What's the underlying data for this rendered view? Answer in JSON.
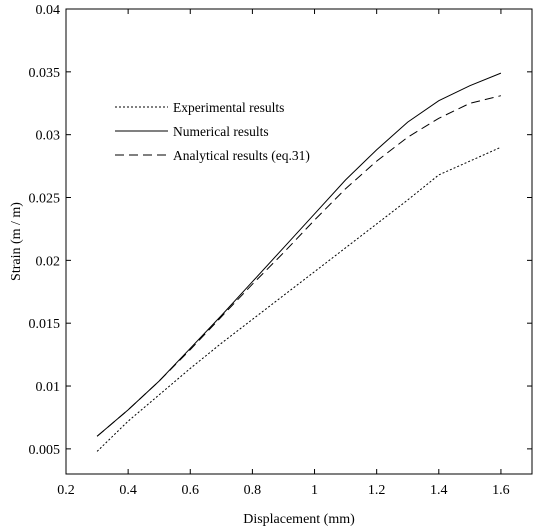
{
  "chart_data": {
    "type": "line",
    "title": "",
    "xlabel": "Displacement (mm)",
    "ylabel": "Strain (m / m)",
    "xlim": [
      0.2,
      1.7
    ],
    "ylim": [
      0.003,
      0.04
    ],
    "xticks": [
      0.2,
      0.4,
      0.6,
      0.8,
      1,
      1.2,
      1.4,
      1.6
    ],
    "xtick_labels": [
      "0.2",
      "0.4",
      "0.6",
      "0.8",
      "1",
      "1.2",
      "1.4",
      "1.6"
    ],
    "yticks": [
      0.005,
      0.01,
      0.015,
      0.02,
      0.025,
      0.03,
      0.035,
      0.04
    ],
    "ytick_labels": [
      "0.005",
      "0.01",
      "0.015",
      "0.02",
      "0.025",
      "0.03",
      "0.035",
      "0.04"
    ],
    "grid": false,
    "legend_placement": "top-left",
    "series": [
      {
        "name": "Experimental results",
        "line_style": "dotted",
        "color": "#000000",
        "x": [
          0.3,
          0.4,
          0.5,
          0.6,
          0.7,
          0.8,
          0.9,
          1.0,
          1.1,
          1.2,
          1.3,
          1.4,
          1.5,
          1.6
        ],
        "y": [
          0.0048,
          0.0072,
          0.0093,
          0.0114,
          0.0134,
          0.0153,
          0.0172,
          0.0191,
          0.021,
          0.0229,
          0.0248,
          0.0268,
          0.0279,
          0.029
        ]
      },
      {
        "name": "Numerical results",
        "line_style": "solid",
        "color": "#000000",
        "x": [
          0.3,
          0.4,
          0.5,
          0.6,
          0.7,
          0.8,
          0.9,
          1.0,
          1.1,
          1.2,
          1.3,
          1.4,
          1.5,
          1.6
        ],
        "y": [
          0.006,
          0.0081,
          0.0104,
          0.013,
          0.0156,
          0.0183,
          0.021,
          0.0237,
          0.0264,
          0.0288,
          0.031,
          0.0327,
          0.0339,
          0.0349
        ]
      },
      {
        "name": "Analytical results (eq.31)",
        "line_style": "dashed",
        "color": "#000000",
        "x": [
          0.3,
          0.4,
          0.5,
          0.6,
          0.7,
          0.8,
          0.9,
          1.0,
          1.1,
          1.2,
          1.3,
          1.4,
          1.5,
          1.6
        ],
        "y": [
          0.006,
          0.0081,
          0.0104,
          0.0129,
          0.0155,
          0.0181,
          0.0206,
          0.0232,
          0.0257,
          0.0279,
          0.0298,
          0.0313,
          0.0325,
          0.0331
        ]
      }
    ]
  }
}
